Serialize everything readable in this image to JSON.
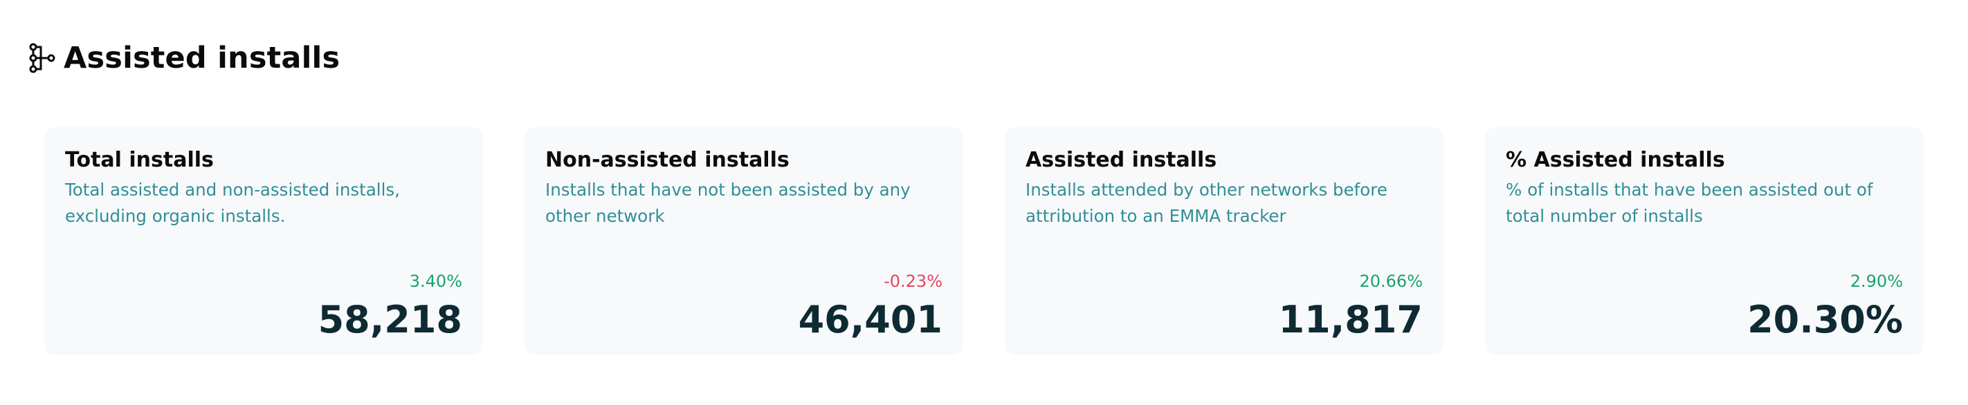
{
  "header": {
    "title": "Assisted installs",
    "icon": "network-tree-icon"
  },
  "cards": [
    {
      "title": "Total installs",
      "description": "Total assisted and non-assisted installs, excluding organic installs.",
      "change": "3.40%",
      "change_direction": "positive",
      "value": "58,218"
    },
    {
      "title": "Non-assisted installs",
      "description": "Installs that have not been assisted by any other network",
      "change": "-0.23%",
      "change_direction": "negative",
      "value": "46,401"
    },
    {
      "title": "Assisted installs",
      "description": "Installs attended by other networks before attribution to an EMMA tracker",
      "change": "20.66%",
      "change_direction": "positive",
      "value": "11,817"
    },
    {
      "title": "% Assisted installs",
      "description": "% of installs that have been assisted out of total number of installs",
      "change": "2.90%",
      "change_direction": "positive",
      "value": "20.30%"
    }
  ],
  "colors": {
    "description": "#2f8f96",
    "positive": "#19a36c",
    "negative": "#e3455c",
    "value": "#0e2a33",
    "card_background": "#f8f9fb"
  }
}
